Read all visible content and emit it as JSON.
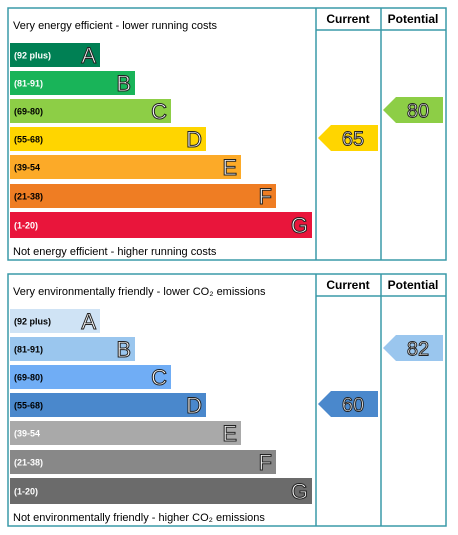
{
  "panels": [
    {
      "title": "Very energy efficient - lower running costs",
      "footer": "Not energy efficient - higher running costs",
      "current_header": "Current",
      "potential_header": "Potential",
      "bands": [
        {
          "range": "(92 plus)",
          "letter": "A"
        },
        {
          "range": "(81-91)",
          "letter": "B"
        },
        {
          "range": "(69-80)",
          "letter": "C"
        },
        {
          "range": "(55-68)",
          "letter": "D"
        },
        {
          "range": "(39-54",
          "letter": "E"
        },
        {
          "range": "(21-38)",
          "letter": "F"
        },
        {
          "range": "(1-20)",
          "letter": "G"
        }
      ],
      "current": "65",
      "potential": "80"
    },
    {
      "title": "Very environmentally friendly - lower CO₂ emissions",
      "footer": "Not environmentally friendly - higher CO₂ emissions",
      "current_header": "Current",
      "potential_header": "Potential",
      "bands": [
        {
          "range": "(92 plus)",
          "letter": "A"
        },
        {
          "range": "(81-91)",
          "letter": "B"
        },
        {
          "range": "(69-80)",
          "letter": "C"
        },
        {
          "range": "(55-68)",
          "letter": "D"
        },
        {
          "range": "(39-54",
          "letter": "E"
        },
        {
          "range": "(21-38)",
          "letter": "F"
        },
        {
          "range": "(1-20)",
          "letter": "G"
        }
      ],
      "current": "60",
      "potential": "82"
    }
  ]
}
